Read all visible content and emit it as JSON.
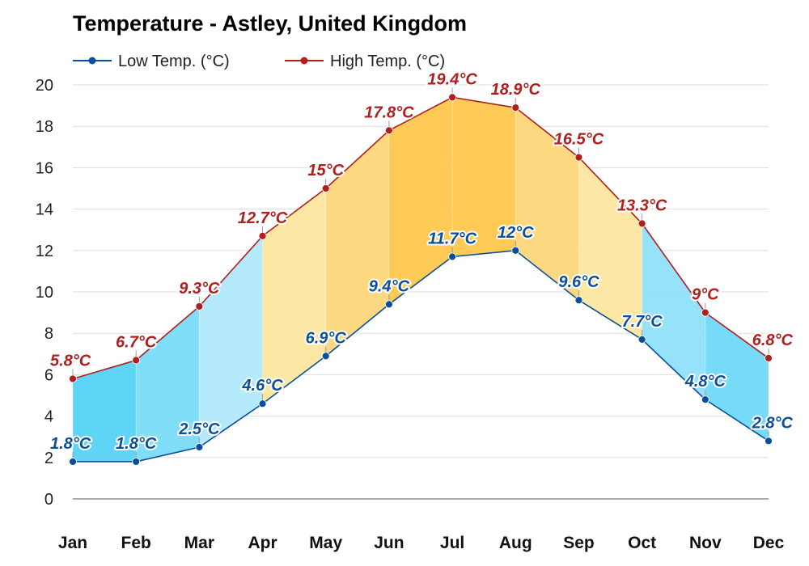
{
  "chart_data": {
    "type": "area",
    "title": "Temperature - Astley, United Kingdom",
    "categories": [
      "Jan",
      "Feb",
      "Mar",
      "Apr",
      "May",
      "Jun",
      "Jul",
      "Aug",
      "Sep",
      "Oct",
      "Nov",
      "Dec"
    ],
    "series": [
      {
        "name": "Low Temp. (°C)",
        "color": "#0b4f9c",
        "values": [
          1.8,
          1.8,
          2.5,
          4.6,
          6.9,
          9.4,
          11.7,
          12,
          9.6,
          7.7,
          4.8,
          2.8
        ],
        "labels": [
          "1.8°C",
          "1.8°C",
          "2.5°C",
          "4.6°C",
          "6.9°C",
          "9.4°C",
          "11.7°C",
          "12°C",
          "9.6°C",
          "7.7°C",
          "4.8°C",
          "2.8°C"
        ]
      },
      {
        "name": "High Temp. (°C)",
        "color": "#b01e1e",
        "values": [
          5.8,
          6.7,
          9.3,
          12.7,
          15,
          17.8,
          19.4,
          18.9,
          16.5,
          13.3,
          9,
          6.8
        ],
        "labels": [
          "5.8°C",
          "6.7°C",
          "9.3°C",
          "12.7°C",
          "15°C",
          "17.8°C",
          "19.4°C",
          "18.9°C",
          "16.5°C",
          "13.3°C",
          "9°C",
          "6.8°C"
        ]
      }
    ],
    "ylim": [
      0,
      20
    ],
    "yticks": [
      0,
      2,
      4,
      6,
      8,
      10,
      12,
      14,
      16,
      18,
      20
    ],
    "grid": true,
    "legend": "top-left",
    "band_colors": [
      "#55d2f7",
      "#7adcf9",
      "#b0e9fb",
      "#fde6a0",
      "#fcd67a",
      "#fcc74c",
      "#fcc74c",
      "#fcd67a",
      "#fde6a0",
      "#8fe0fa",
      "#6fd8f8"
    ]
  }
}
